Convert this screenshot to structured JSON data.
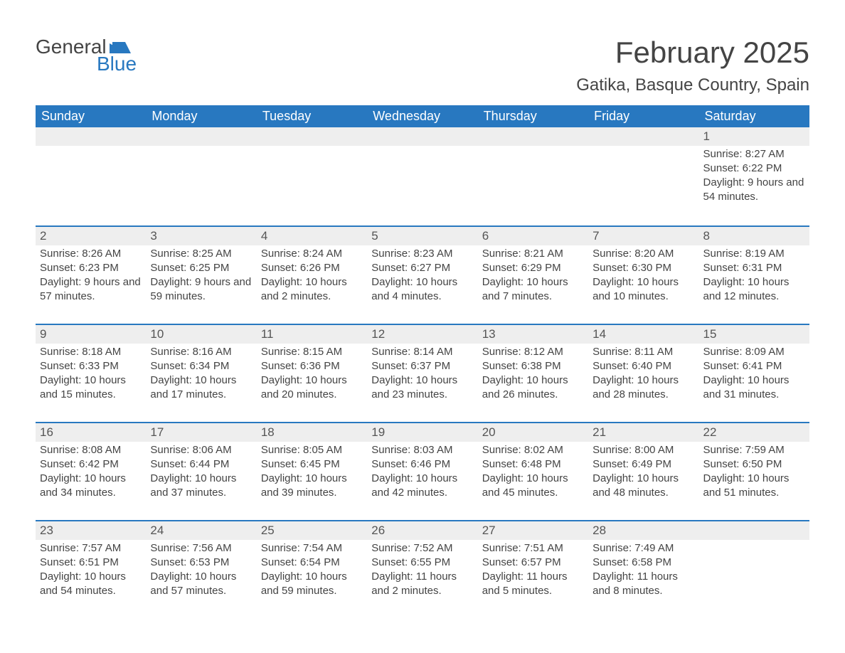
{
  "logo": {
    "top": "General",
    "bottom": "Blue"
  },
  "title": "February 2025",
  "location": "Gatika, Basque Country, Spain",
  "day_headers": [
    "Sunday",
    "Monday",
    "Tuesday",
    "Wednesday",
    "Thursday",
    "Friday",
    "Saturday"
  ],
  "colors": {
    "header_bg": "#2878c0",
    "header_text": "#ffffff",
    "daynum_bg": "#eeeeee",
    "border": "#2878c0",
    "body_text": "#444444",
    "logo_blue": "#2878c0"
  },
  "weeks": [
    [
      null,
      null,
      null,
      null,
      null,
      null,
      {
        "num": "1",
        "sunrise": "8:27 AM",
        "sunset": "6:22 PM",
        "daylight": "9 hours and 54 minutes."
      }
    ],
    [
      {
        "num": "2",
        "sunrise": "8:26 AM",
        "sunset": "6:23 PM",
        "daylight": "9 hours and 57 minutes."
      },
      {
        "num": "3",
        "sunrise": "8:25 AM",
        "sunset": "6:25 PM",
        "daylight": "9 hours and 59 minutes."
      },
      {
        "num": "4",
        "sunrise": "8:24 AM",
        "sunset": "6:26 PM",
        "daylight": "10 hours and 2 minutes."
      },
      {
        "num": "5",
        "sunrise": "8:23 AM",
        "sunset": "6:27 PM",
        "daylight": "10 hours and 4 minutes."
      },
      {
        "num": "6",
        "sunrise": "8:21 AM",
        "sunset": "6:29 PM",
        "daylight": "10 hours and 7 minutes."
      },
      {
        "num": "7",
        "sunrise": "8:20 AM",
        "sunset": "6:30 PM",
        "daylight": "10 hours and 10 minutes."
      },
      {
        "num": "8",
        "sunrise": "8:19 AM",
        "sunset": "6:31 PM",
        "daylight": "10 hours and 12 minutes."
      }
    ],
    [
      {
        "num": "9",
        "sunrise": "8:18 AM",
        "sunset": "6:33 PM",
        "daylight": "10 hours and 15 minutes."
      },
      {
        "num": "10",
        "sunrise": "8:16 AM",
        "sunset": "6:34 PM",
        "daylight": "10 hours and 17 minutes."
      },
      {
        "num": "11",
        "sunrise": "8:15 AM",
        "sunset": "6:36 PM",
        "daylight": "10 hours and 20 minutes."
      },
      {
        "num": "12",
        "sunrise": "8:14 AM",
        "sunset": "6:37 PM",
        "daylight": "10 hours and 23 minutes."
      },
      {
        "num": "13",
        "sunrise": "8:12 AM",
        "sunset": "6:38 PM",
        "daylight": "10 hours and 26 minutes."
      },
      {
        "num": "14",
        "sunrise": "8:11 AM",
        "sunset": "6:40 PM",
        "daylight": "10 hours and 28 minutes."
      },
      {
        "num": "15",
        "sunrise": "8:09 AM",
        "sunset": "6:41 PM",
        "daylight": "10 hours and 31 minutes."
      }
    ],
    [
      {
        "num": "16",
        "sunrise": "8:08 AM",
        "sunset": "6:42 PM",
        "daylight": "10 hours and 34 minutes."
      },
      {
        "num": "17",
        "sunrise": "8:06 AM",
        "sunset": "6:44 PM",
        "daylight": "10 hours and 37 minutes."
      },
      {
        "num": "18",
        "sunrise": "8:05 AM",
        "sunset": "6:45 PM",
        "daylight": "10 hours and 39 minutes."
      },
      {
        "num": "19",
        "sunrise": "8:03 AM",
        "sunset": "6:46 PM",
        "daylight": "10 hours and 42 minutes."
      },
      {
        "num": "20",
        "sunrise": "8:02 AM",
        "sunset": "6:48 PM",
        "daylight": "10 hours and 45 minutes."
      },
      {
        "num": "21",
        "sunrise": "8:00 AM",
        "sunset": "6:49 PM",
        "daylight": "10 hours and 48 minutes."
      },
      {
        "num": "22",
        "sunrise": "7:59 AM",
        "sunset": "6:50 PM",
        "daylight": "10 hours and 51 minutes."
      }
    ],
    [
      {
        "num": "23",
        "sunrise": "7:57 AM",
        "sunset": "6:51 PM",
        "daylight": "10 hours and 54 minutes."
      },
      {
        "num": "24",
        "sunrise": "7:56 AM",
        "sunset": "6:53 PM",
        "daylight": "10 hours and 57 minutes."
      },
      {
        "num": "25",
        "sunrise": "7:54 AM",
        "sunset": "6:54 PM",
        "daylight": "10 hours and 59 minutes."
      },
      {
        "num": "26",
        "sunrise": "7:52 AM",
        "sunset": "6:55 PM",
        "daylight": "11 hours and 2 minutes."
      },
      {
        "num": "27",
        "sunrise": "7:51 AM",
        "sunset": "6:57 PM",
        "daylight": "11 hours and 5 minutes."
      },
      {
        "num": "28",
        "sunrise": "7:49 AM",
        "sunset": "6:58 PM",
        "daylight": "11 hours and 8 minutes."
      },
      null
    ]
  ],
  "labels": {
    "sunrise": "Sunrise:",
    "sunset": "Sunset:",
    "daylight": "Daylight:"
  }
}
